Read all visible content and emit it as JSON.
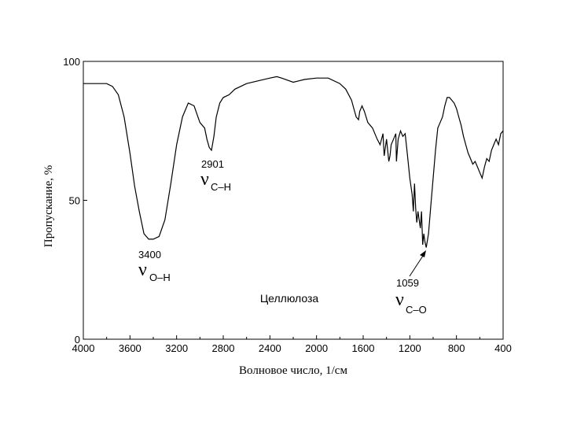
{
  "chart_data": {
    "type": "line",
    "title": "",
    "xlabel": "Волновое число, 1/см",
    "ylabel": "Пропускание, %",
    "xlim": [
      4000,
      400
    ],
    "ylim": [
      0,
      100
    ],
    "x_ticks": [
      "4000",
      "3600",
      "3200",
      "2800",
      "2400",
      "2000",
      "1600",
      "1200",
      "800",
      "400"
    ],
    "y_ticks": [
      "0",
      "50",
      "100"
    ],
    "grid": false,
    "series": [
      {
        "name": "Целлюлоза",
        "x": [
          4000,
          3900,
          3800,
          3750,
          3700,
          3650,
          3600,
          3560,
          3520,
          3480,
          3440,
          3400,
          3350,
          3300,
          3250,
          3200,
          3150,
          3100,
          3050,
          3000,
          2960,
          2940,
          2920,
          2901,
          2880,
          2860,
          2830,
          2800,
          2750,
          2700,
          2600,
          2500,
          2400,
          2340,
          2300,
          2200,
          2150,
          2100,
          2000,
          1900,
          1800,
          1750,
          1700,
          1680,
          1660,
          1640,
          1630,
          1610,
          1590,
          1560,
          1520,
          1480,
          1455,
          1430,
          1420,
          1400,
          1380,
          1370,
          1360,
          1340,
          1320,
          1315,
          1300,
          1280,
          1260,
          1240,
          1220,
          1200,
          1180,
          1170,
          1160,
          1150,
          1140,
          1130,
          1110,
          1100,
          1090,
          1080,
          1070,
          1059,
          1040,
          1020,
          1000,
          980,
          960,
          940,
          920,
          900,
          880,
          860,
          840,
          820,
          800,
          780,
          760,
          740,
          720,
          700,
          680,
          660,
          640,
          620,
          600,
          580,
          560,
          540,
          520,
          500,
          480,
          460,
          440,
          420,
          400
        ],
        "values": [
          92,
          92,
          92,
          91,
          88,
          80,
          67,
          55,
          46,
          38,
          36,
          36,
          37,
          43,
          56,
          70,
          80,
          85,
          84,
          78,
          76,
          72,
          69,
          68,
          73,
          80,
          85,
          87,
          88,
          90,
          92,
          93,
          94,
          94.5,
          94,
          92.5,
          93,
          93.5,
          94,
          94,
          92,
          90,
          86,
          83,
          80,
          79,
          82,
          84,
          82,
          78,
          76,
          72,
          70,
          74,
          66,
          72,
          64,
          66,
          70,
          72,
          74,
          64,
          72,
          75,
          73,
          74,
          66,
          58,
          52,
          46,
          56,
          47,
          42,
          46,
          40,
          46,
          34,
          38,
          35,
          33,
          38,
          48,
          58,
          68,
          76,
          78,
          80,
          84,
          87,
          87,
          86,
          85,
          83,
          80,
          77,
          73,
          70,
          67,
          65,
          63,
          64,
          62,
          60,
          58,
          62,
          65,
          64,
          68,
          70,
          72,
          70,
          74,
          75
        ]
      }
    ],
    "annotations": [
      {
        "wavenumber": "3400",
        "symbol": "ν",
        "subscript": "O–H"
      },
      {
        "wavenumber": "2901",
        "symbol": "ν",
        "subscript": "C–H"
      },
      {
        "wavenumber": "1059",
        "symbol": "ν",
        "subscript": "C–O"
      }
    ],
    "series_label": "Целлюлоза"
  }
}
